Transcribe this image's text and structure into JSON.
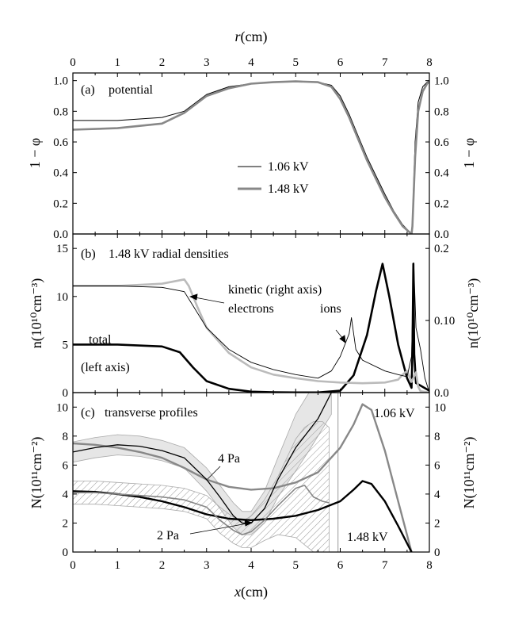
{
  "chart_data": [
    {
      "type": "line",
      "label": "(a)",
      "title": "potential",
      "top_axis_label": "r(cm)",
      "x_ticks": [
        "0",
        "1",
        "2",
        "3",
        "4",
        "5",
        "6",
        "7",
        "8"
      ],
      "xlim": [
        0,
        8
      ],
      "ylabel_left": "1 − φ",
      "ylabel_right": "1 − φ",
      "ylim": [
        0,
        1.05
      ],
      "y_ticks": [
        "0.0",
        "0.2",
        "0.4",
        "0.6",
        "0.8",
        "1.0"
      ],
      "series": [
        {
          "name": "1.06 kV",
          "color": "#000000",
          "x": [
            0,
            1,
            2,
            2.5,
            3,
            3.5,
            4,
            4.5,
            5,
            5.5,
            5.8,
            6,
            6.2,
            6.4,
            6.6,
            6.8,
            7,
            7.2,
            7.4,
            7.6,
            7.62,
            7.68,
            7.75,
            7.85,
            7.95,
            8
          ],
          "y": [
            0.74,
            0.74,
            0.76,
            0.8,
            0.91,
            0.96,
            0.98,
            0.99,
            0.995,
            0.99,
            0.97,
            0.9,
            0.78,
            0.64,
            0.5,
            0.38,
            0.26,
            0.15,
            0.06,
            0.0,
            0.1,
            0.6,
            0.86,
            0.96,
            0.99,
            1.0
          ]
        },
        {
          "name": "1.48 kV",
          "color": "#888888",
          "x": [
            0,
            1,
            2,
            2.5,
            3,
            3.5,
            4,
            4.5,
            5,
            5.5,
            5.8,
            6,
            6.2,
            6.4,
            6.6,
            6.8,
            7,
            7.2,
            7.4,
            7.6,
            7.62,
            7.68,
            7.75,
            7.85,
            7.95,
            8
          ],
          "y": [
            0.68,
            0.69,
            0.72,
            0.79,
            0.9,
            0.95,
            0.98,
            0.99,
            0.995,
            0.99,
            0.96,
            0.88,
            0.76,
            0.62,
            0.48,
            0.36,
            0.24,
            0.14,
            0.05,
            0.0,
            0.05,
            0.5,
            0.8,
            0.93,
            0.98,
            0.995
          ]
        }
      ],
      "legend": [
        "1.06 kV",
        "1.48 kV"
      ]
    },
    {
      "type": "line",
      "label": "(b)",
      "title": "1.48 kV radial densities",
      "xlim": [
        0,
        8
      ],
      "ylabel_left": "n(10¹⁰cm⁻³)",
      "ylabel_right": "n(10¹⁰cm⁻³)",
      "ylim_left": [
        0,
        16.5
      ],
      "y_ticks_left": [
        "0",
        "5",
        "10",
        "15"
      ],
      "ylim_right": [
        0,
        0.22
      ],
      "y_ticks_right": [
        "0.0",
        "0.10",
        "0.2"
      ],
      "annotations": [
        "kinetic (right axis)",
        "electrons",
        "ions",
        "total",
        "(left axis)"
      ],
      "series": [
        {
          "name": "total",
          "axis": "left",
          "color": "#000000",
          "x": [
            0,
            1,
            2,
            2.4,
            2.7,
            3,
            3.5,
            4,
            4.5,
            5,
            5.5,
            6,
            6.3,
            6.6,
            6.8,
            6.95,
            7.1,
            7.3,
            7.5,
            7.6,
            7.62,
            7.64,
            7.66,
            7.7,
            8
          ],
          "y": [
            5,
            5,
            4.8,
            4.2,
            2.6,
            1.2,
            0.4,
            0.1,
            0.03,
            0.02,
            0.02,
            0.2,
            1.8,
            6,
            10.5,
            13.4,
            10,
            5,
            1.5,
            0.5,
            4,
            13.4,
            4,
            1,
            0.2
          ]
        },
        {
          "name": "electrons",
          "axis": "right",
          "color": "#bbbbbb",
          "x": [
            0,
            1,
            2,
            2.5,
            2.6,
            2.8,
            3,
            3.5,
            4,
            4.5,
            5,
            5.5,
            6,
            6.5,
            7,
            7.3,
            7.4,
            7.5,
            7.6,
            7.7,
            7.75,
            7.8,
            8
          ],
          "y": [
            0.148,
            0.148,
            0.151,
            0.157,
            0.148,
            0.118,
            0.09,
            0.055,
            0.035,
            0.025,
            0.02,
            0.016,
            0.014,
            0.013,
            0.014,
            0.018,
            0.025,
            0.03,
            0.015,
            0.028,
            0.008,
            0.002,
            0.0
          ]
        },
        {
          "name": "ions",
          "axis": "right",
          "color": "#000000",
          "x": [
            0,
            1,
            2,
            2.5,
            2.7,
            3,
            3.5,
            4,
            4.5,
            5,
            5.5,
            5.8,
            6,
            6.2,
            6.25,
            6.35,
            6.5,
            7,
            7.3,
            7.5,
            7.6,
            7.65,
            7.7,
            7.8,
            7.9,
            8
          ],
          "y": [
            0.148,
            0.148,
            0.146,
            0.14,
            0.12,
            0.09,
            0.06,
            0.042,
            0.032,
            0.025,
            0.02,
            0.03,
            0.05,
            0.082,
            0.104,
            0.06,
            0.045,
            0.03,
            0.025,
            0.022,
            0.05,
            0.18,
            0.09,
            0.06,
            0.02,
            0.0
          ]
        }
      ]
    },
    {
      "type": "line",
      "label": "(c)",
      "title": "transverse profiles",
      "xlabel": "x(cm)",
      "x_ticks": [
        "0",
        "1",
        "2",
        "3",
        "4",
        "5",
        "6",
        "7",
        "8"
      ],
      "xlim": [
        0,
        8
      ],
      "ylabel_left": "N(10¹¹cm⁻²)",
      "ylabel_right": "N(10¹¹cm⁻²)",
      "ylim": [
        0,
        11
      ],
      "y_ticks": [
        "0",
        "2",
        "4",
        "6",
        "8",
        "10"
      ],
      "annotations": [
        "4 Pa",
        "2 Pa",
        "1.06 kV",
        "1.48 kV"
      ],
      "vertical_line_x": 5.95,
      "series": [
        {
          "name": "1.06 kV",
          "color": "#888888",
          "x": [
            0,
            0.5,
            1,
            1.5,
            2,
            2.5,
            3,
            3.5,
            4,
            4.5,
            5,
            5.5,
            6,
            6.3,
            6.5,
            6.7,
            7,
            7.3,
            7.6
          ],
          "y": [
            7.5,
            7.4,
            7.2,
            6.9,
            6.5,
            5.8,
            5,
            4.5,
            4.3,
            4.4,
            4.8,
            5.5,
            7.2,
            8.8,
            10.2,
            9.8,
            7,
            3.5,
            0
          ]
        },
        {
          "name": "1.48 kV",
          "color": "#000000",
          "x": [
            0,
            0.5,
            1,
            1.5,
            2,
            2.5,
            3,
            3.5,
            4,
            4.5,
            5,
            5.5,
            6,
            6.3,
            6.5,
            6.7,
            7,
            7.3,
            7.6
          ],
          "y": [
            4.2,
            4.15,
            4,
            3.8,
            3.5,
            3.1,
            2.6,
            2.3,
            2.2,
            2.3,
            2.5,
            2.9,
            3.5,
            4.3,
            4.9,
            4.7,
            3.5,
            1.8,
            0
          ]
        },
        {
          "name": "4 Pa",
          "color": "#000000",
          "x": [
            0,
            0.5,
            1,
            1.5,
            2,
            2.5,
            3,
            3.3,
            3.6,
            3.8,
            4,
            4.3,
            4.6,
            5,
            5.5,
            5.8
          ],
          "y": [
            6.9,
            7.2,
            7.4,
            7.3,
            7.0,
            6.5,
            5.0,
            3.8,
            2.5,
            2.0,
            2.0,
            3.0,
            5.0,
            7.2,
            9.2,
            11
          ]
        },
        {
          "name": "2 Pa",
          "color": "#888888",
          "x": [
            0,
            0.5,
            1,
            1.5,
            2,
            2.5,
            3,
            3.3,
            3.6,
            3.8,
            4,
            4.3,
            4.6,
            5,
            5.2,
            5.4,
            5.6,
            5.75
          ],
          "y": [
            4.1,
            4.1,
            4.0,
            3.9,
            3.8,
            3.6,
            3.1,
            2.2,
            1.5,
            1.2,
            1.4,
            2.2,
            3.2,
            4.4,
            4.6,
            3.8,
            3.5,
            3.4
          ]
        }
      ],
      "bands": [
        {
          "name": "4 Pa band",
          "x": [
            0,
            0.5,
            1,
            1.5,
            2,
            2.5,
            3,
            3.3,
            3.6,
            3.8,
            4,
            4.3,
            4.6,
            5,
            5.3,
            5.6,
            5.8
          ],
          "y_low": [
            6.2,
            6.5,
            6.7,
            6.6,
            6.3,
            5.8,
            4.2,
            3.0,
            1.7,
            1.2,
            1.2,
            2.0,
            3.8,
            5.6,
            7,
            8.5,
            9.5
          ],
          "y_high": [
            7.6,
            7.9,
            8.1,
            8.0,
            7.7,
            7.2,
            5.8,
            4.6,
            3.4,
            2.8,
            2.8,
            4.2,
            6.5,
            9.5,
            11,
            11,
            11
          ]
        },
        {
          "name": "2 Pa band",
          "x": [
            0,
            0.5,
            1,
            1.5,
            2,
            2.5,
            3,
            3.3,
            3.6,
            3.8,
            4,
            4.3,
            4.6,
            5,
            5.2,
            5.4,
            5.6,
            5.75
          ],
          "y_low": [
            3.3,
            3.3,
            3.2,
            3.1,
            3.0,
            2.8,
            2.3,
            1.3,
            0.6,
            0.3,
            0.3,
            0.8,
            1.2,
            1.0,
            0.5,
            0.0,
            0.0,
            0.0
          ],
          "y_high": [
            4.9,
            4.9,
            4.8,
            4.7,
            4.6,
            4.4,
            3.9,
            3.1,
            2.4,
            2.1,
            2.5,
            3.6,
            5.2,
            7.8,
            8.6,
            9.0,
            9.0,
            8.6
          ]
        }
      ]
    }
  ]
}
